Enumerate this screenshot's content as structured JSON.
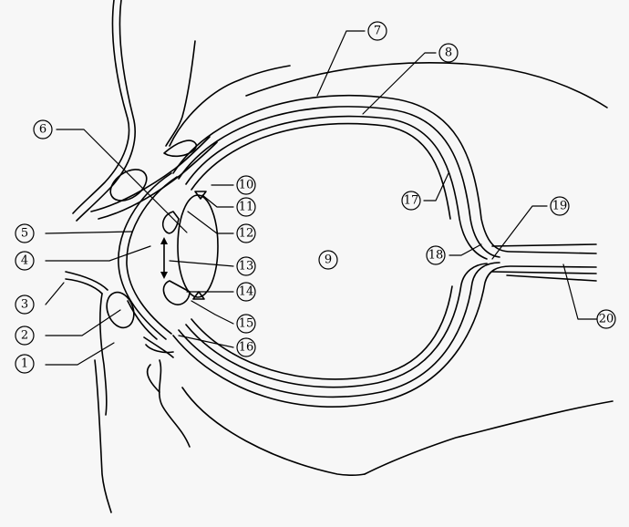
{
  "diagram": {
    "labels": {
      "l1": "1",
      "l2": "2",
      "l3": "3",
      "l4": "4",
      "l5": "5",
      "l6": "6",
      "l7": "7",
      "l8": "8",
      "l9": "9",
      "l10": "10",
      "l11": "11",
      "l12": "12",
      "l13": "13",
      "l14": "14",
      "l15": "15",
      "l16": "16",
      "l17": "17",
      "l18": "18",
      "l19": "19",
      "l20": "20"
    }
  }
}
